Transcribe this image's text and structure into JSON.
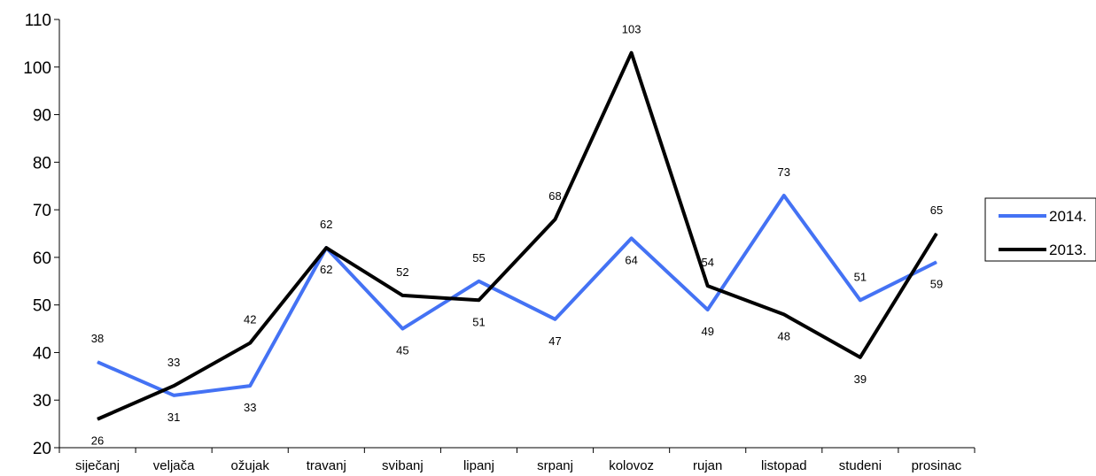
{
  "chart_data": {
    "type": "line",
    "categories": [
      "siječanj",
      "veljača",
      "ožujak",
      "travanj",
      "svibanj",
      "lipanj",
      "srpanj",
      "kolovoz",
      "rujan",
      "listopad",
      "studeni",
      "prosinac"
    ],
    "series": [
      {
        "name": "2014.",
        "color": "#4472f4",
        "values": [
          38,
          31,
          33,
          62,
          45,
          55,
          47,
          64,
          49,
          73,
          51,
          59
        ]
      },
      {
        "name": "2013.",
        "color": "#000000",
        "values": [
          26,
          33,
          42,
          62,
          52,
          51,
          68,
          103,
          54,
          48,
          39,
          65
        ]
      }
    ],
    "ylim": [
      20,
      110
    ],
    "yticks": [
      20,
      30,
      40,
      50,
      60,
      70,
      80,
      90,
      100,
      110
    ],
    "legend_position": "right",
    "grid": false
  }
}
